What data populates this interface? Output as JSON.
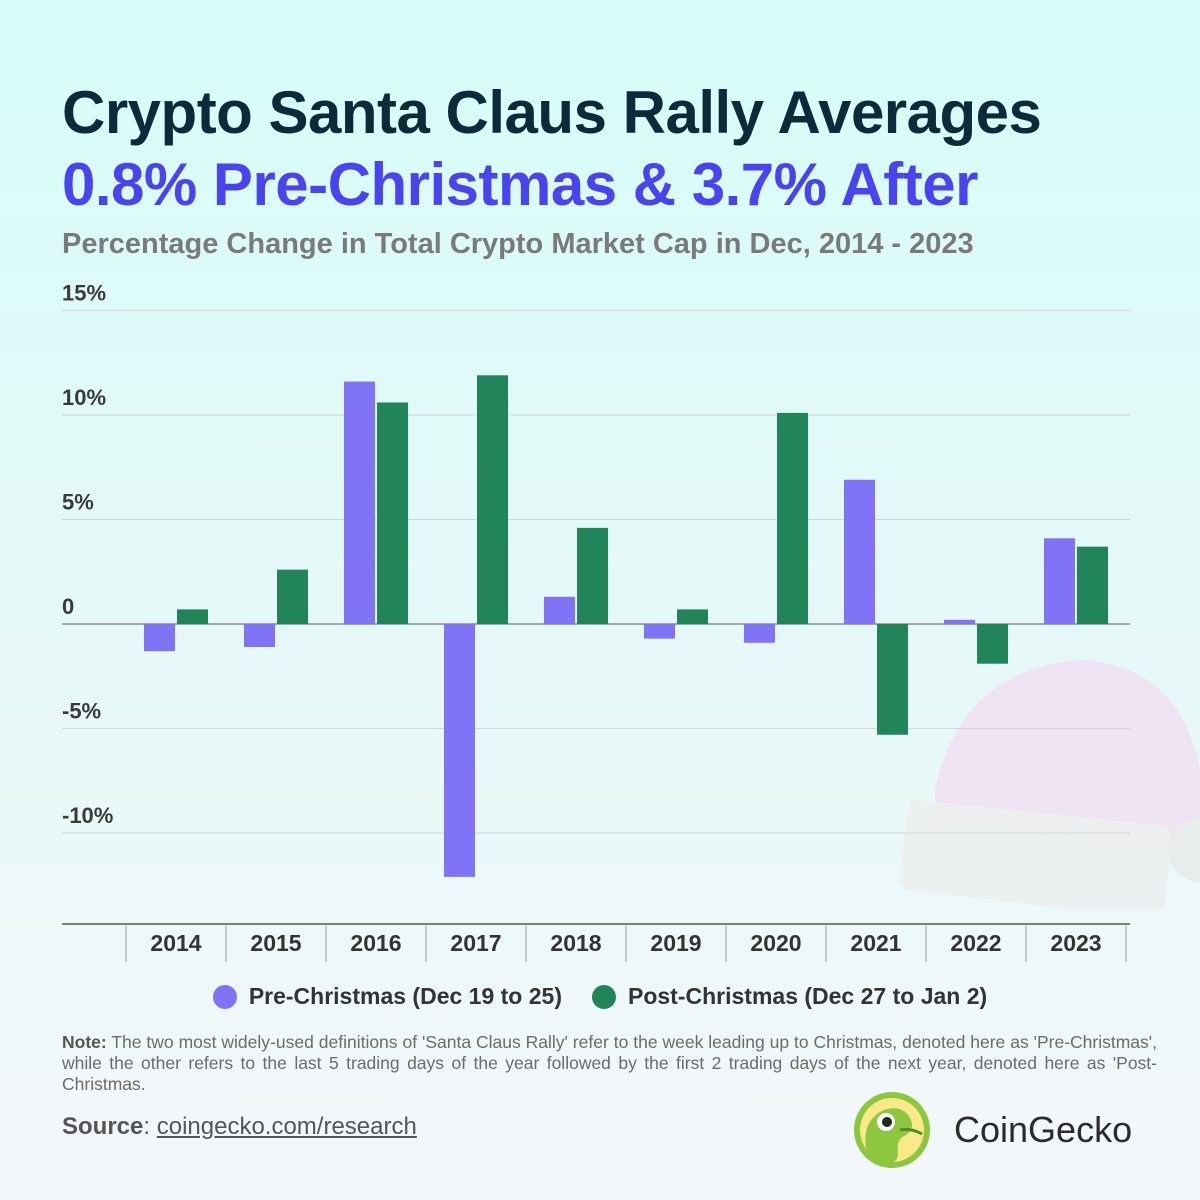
{
  "header": {
    "title_line1": "Crypto Santa Claus Rally Averages",
    "title_line2": "0.8% Pre-Christmas & 3.7% After",
    "subtitle": "Percentage Change in Total Crypto Market Cap in Dec, 2014 - 2023"
  },
  "colors": {
    "pre": "#8073f5",
    "post": "#22855a"
  },
  "chart_data": {
    "type": "bar",
    "categories": [
      "2014",
      "2015",
      "2016",
      "2017",
      "2018",
      "2019",
      "2020",
      "2021",
      "2022",
      "2023"
    ],
    "series": [
      {
        "name": "Pre-Christmas (Dec 19 to 25)",
        "values": [
          -1.3,
          -1.1,
          11.6,
          -12.1,
          1.3,
          -0.7,
          -0.9,
          6.9,
          0.2,
          4.1
        ]
      },
      {
        "name": "Post-Christmas (Dec 27 to Jan 2)",
        "values": [
          0.7,
          2.6,
          10.6,
          11.9,
          4.6,
          0.7,
          10.1,
          -5.3,
          -1.9,
          3.7
        ]
      }
    ],
    "y_ticks": [
      {
        "value": 15,
        "label": "15%"
      },
      {
        "value": 10,
        "label": "10%"
      },
      {
        "value": 5,
        "label": "5%"
      },
      {
        "value": 0,
        "label": "0"
      },
      {
        "value": -5,
        "label": "-5%"
      },
      {
        "value": -10,
        "label": "-10%"
      }
    ],
    "ylim": [
      -14.3,
      15
    ],
    "grid": true,
    "legend_position": "bottom"
  },
  "legend": {
    "pre_label": "Pre-Christmas (Dec 19 to 25)",
    "post_label": "Post-Christmas (Dec 27 to Jan 2)"
  },
  "note": {
    "label": "Note:",
    "text": " The two most widely-used definitions of 'Santa Claus Rally' refer to the week leading up to Christmas, denoted here as 'Pre-Christmas', while the other refers to the last 5 trading days of the year followed by the first 2 trading days of the next year, denoted here as 'Post-Christmas."
  },
  "source": {
    "label": "Source",
    "link": "coingecko.com/research"
  },
  "brand": {
    "name": "CoinGecko"
  }
}
